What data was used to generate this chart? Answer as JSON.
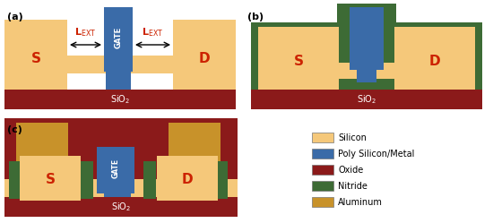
{
  "colors": {
    "silicon": "#F5C87A",
    "poly_metal": "#3A6BA8",
    "oxide": "#8B1A1A",
    "nitride": "#3D6B35",
    "aluminum": "#C8922A",
    "label_red": "#CC2200",
    "white": "#FFFFFF",
    "background": "#FFFFFF",
    "black": "#000000"
  },
  "legend_items": [
    {
      "label": "Silicon",
      "color": "#F5C87A"
    },
    {
      "label": "Poly Silicon/Metal",
      "color": "#3A6BA8"
    },
    {
      "label": "Oxide",
      "color": "#8B1A1A"
    },
    {
      "label": "Nitride",
      "color": "#3D6B35"
    },
    {
      "label": "Aluminum",
      "color": "#C8922A"
    }
  ]
}
